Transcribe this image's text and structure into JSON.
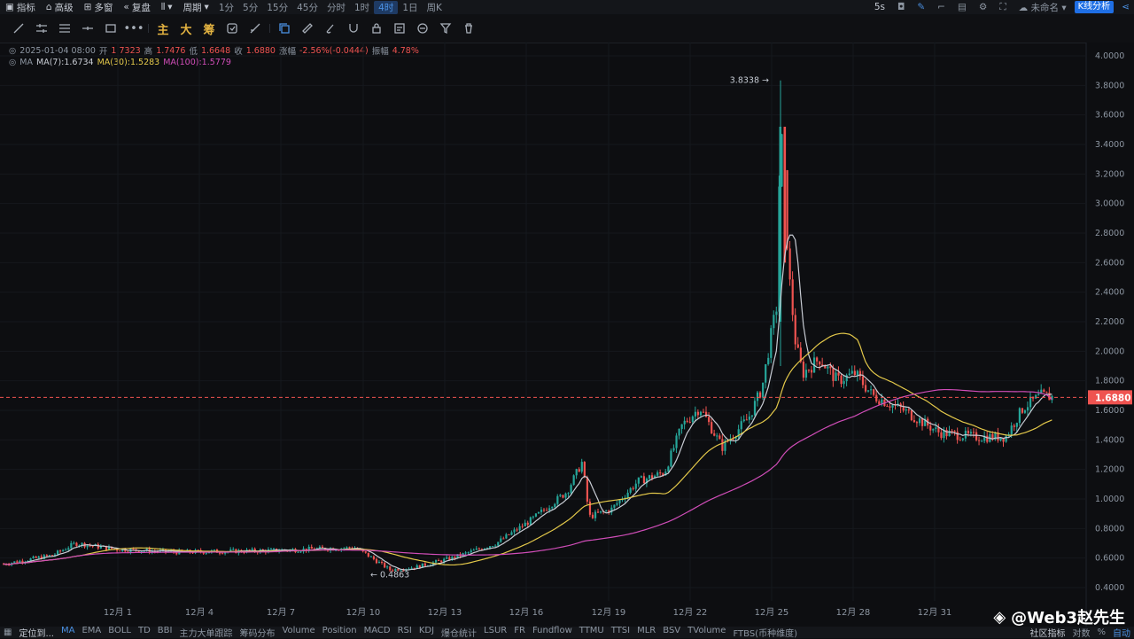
{
  "top_bar": {
    "items": [
      "指标",
      "高级",
      "多窗",
      "复盘",
      "周期"
    ],
    "timeframes": [
      "1分",
      "5分",
      "15分",
      "45分",
      "分时",
      "1时",
      "4时",
      "1日",
      "周K"
    ],
    "active_timeframe": "4时",
    "refresh": "5s",
    "layout_name": "未命名",
    "kline_button": "K线分析"
  },
  "tool_bar": {
    "chinese_tools": [
      "主",
      "大",
      "筹"
    ]
  },
  "ohlc": {
    "datetime": "2025-01-04 08:00",
    "open_label": "开",
    "open": "1.7323",
    "high_label": "高",
    "high": "1.7476",
    "low_label": "低",
    "low": "1.6648",
    "close_label": "收",
    "close": "1.6880",
    "change_label": "涨幅",
    "change": "-2.56%(-0.0444)",
    "amp_label": "振幅",
    "amp": "4.78%"
  },
  "ma_line": {
    "label": "MA",
    "ma7": "MA(7):1.6734",
    "ma30": "MA(30):1.5283",
    "ma100": "MA(100):1.5779"
  },
  "chart_data": {
    "type": "candlestick",
    "ylim": [
      0.4,
      4.0
    ],
    "y_ticks": [
      "4.0000",
      "3.8000",
      "3.6000",
      "3.4000",
      "3.2000",
      "3.0000",
      "2.8000",
      "2.6000",
      "2.4000",
      "2.2000",
      "2.0000",
      "1.8000",
      "1.6000",
      "1.4000",
      "1.2000",
      "1.0000",
      "0.8000",
      "0.6000",
      "0.4000"
    ],
    "x_ticks": [
      "12月 1",
      "12月 4",
      "12月 7",
      "12月 10",
      "12月 13",
      "12月 16",
      "12月 19",
      "12月 22",
      "12月 25",
      "12月 28",
      "12月 31"
    ],
    "high_label": "3.8338",
    "low_label": "0.4863",
    "current_price": "1.6880",
    "colors": {
      "up": "#26a69a",
      "down": "#ef5350",
      "ma7": "#c8ccd4",
      "ma30": "#e3c84a",
      "ma100": "#d04db8"
    }
  },
  "bottom_bar": {
    "left": "定位到...",
    "indicators": [
      "MA",
      "EMA",
      "BOLL",
      "TD",
      "BBI",
      "主力大单跟踪",
      "筹码分布",
      "Volume",
      "Position",
      "MACD",
      "RSI",
      "KDJ",
      "爆仓统计",
      "LSUR",
      "FR",
      "Fundflow",
      "TTMU",
      "TTSI",
      "MLR",
      "BSV",
      "TVolume",
      "FTBS(币种维度)"
    ],
    "right": [
      "社区指标",
      "对数",
      "%",
      "自动"
    ]
  },
  "watermark": "@Web3赵先生"
}
